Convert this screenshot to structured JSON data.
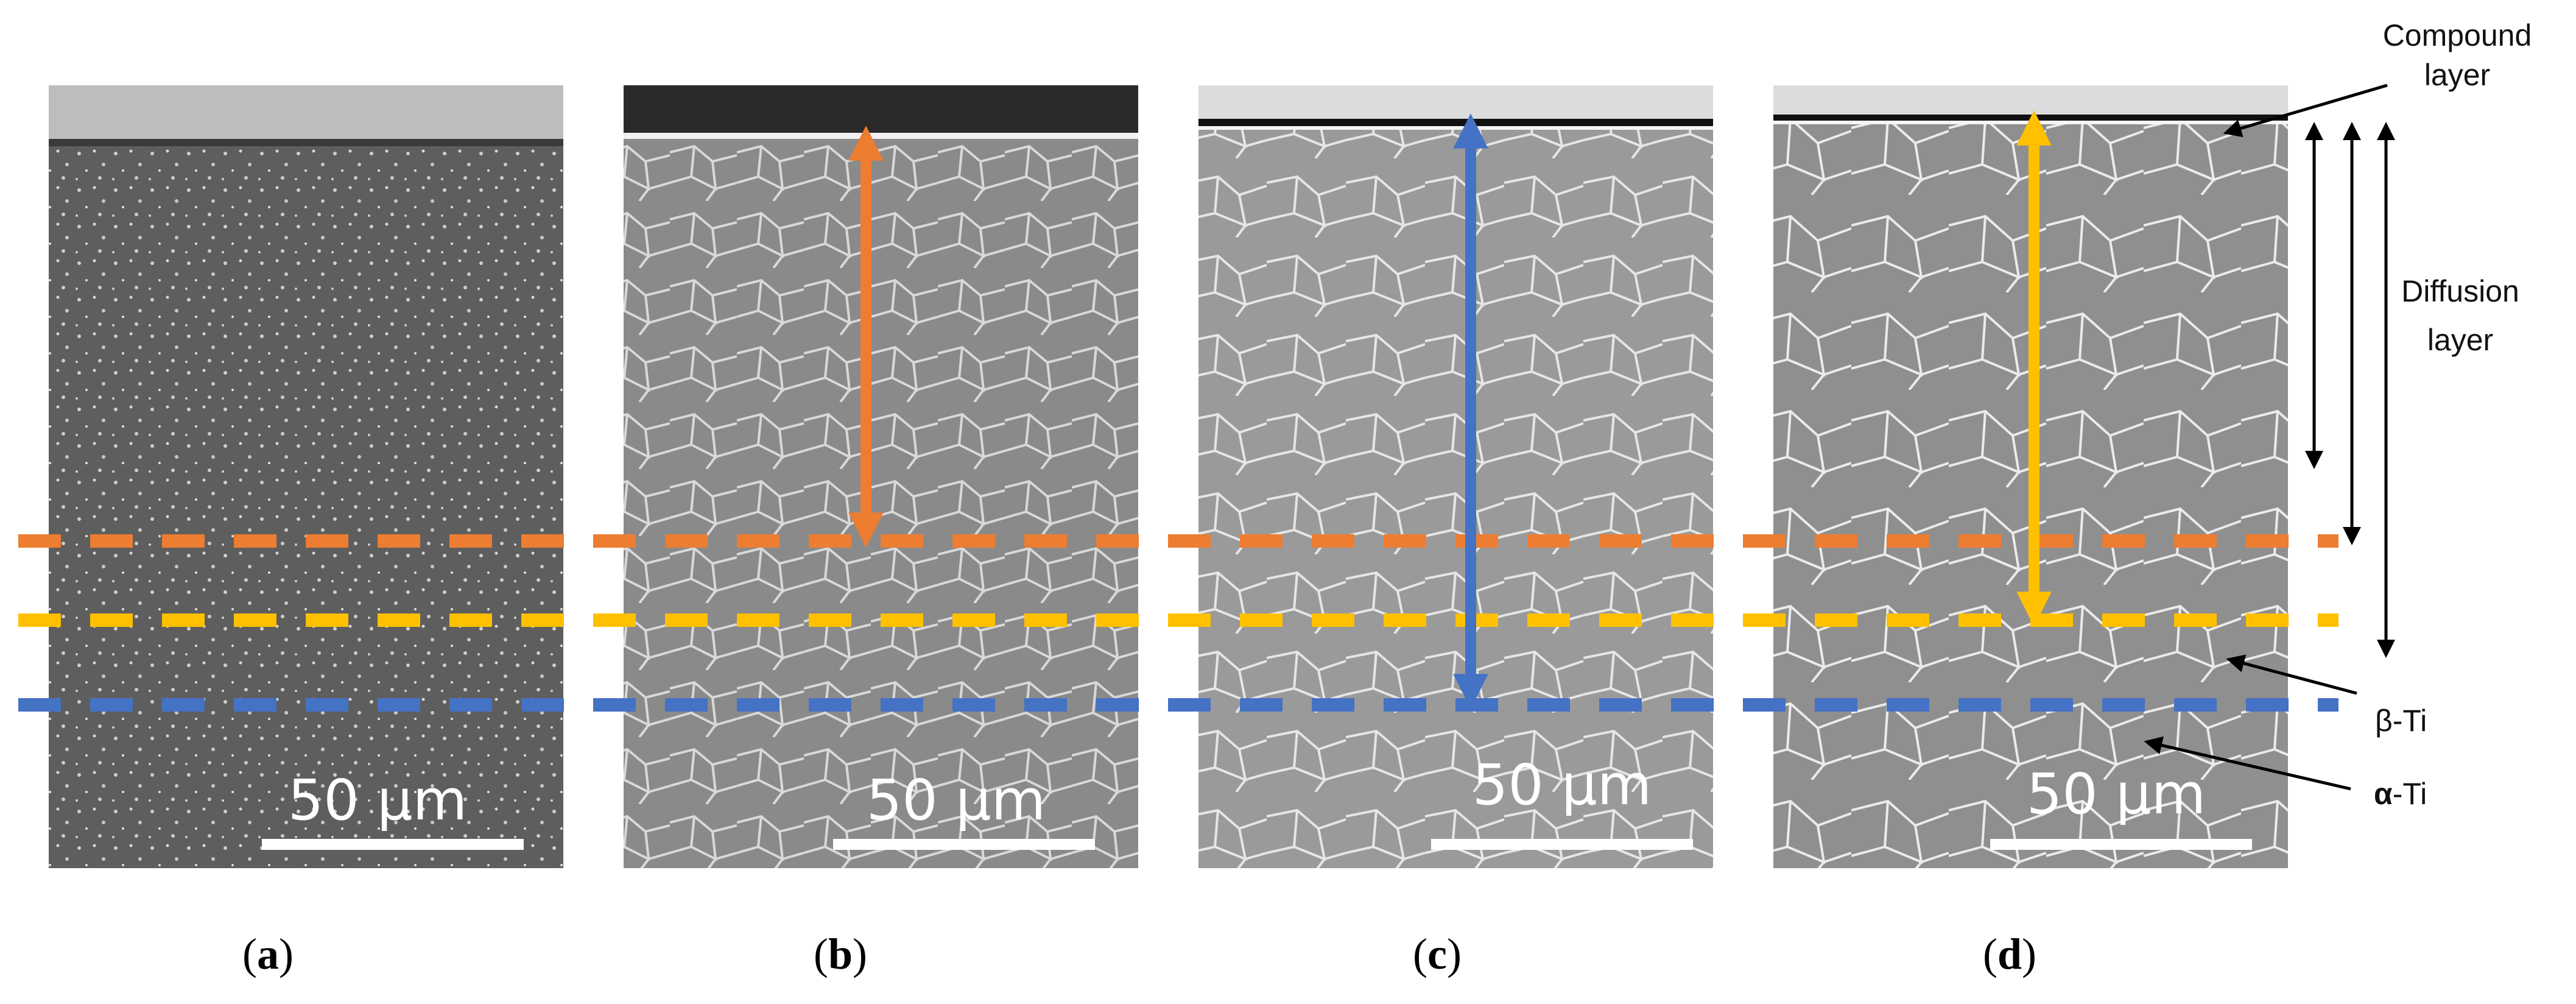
{
  "panels": [
    {
      "id": "a",
      "label": "a",
      "scale_bar": "50 μm"
    },
    {
      "id": "b",
      "label": "b",
      "scale_bar": "50 μm"
    },
    {
      "id": "c",
      "label": "c",
      "scale_bar": "50 μm"
    },
    {
      "id": "d",
      "label": "d",
      "scale_bar": "50 μm"
    }
  ],
  "annotations": {
    "compound_line1": "Compound",
    "compound_line2": "layer",
    "diffusion_line1": "Diffusion",
    "diffusion_line2": "layer",
    "beta_ti": "β-Ti",
    "alpha_symbol": "α",
    "alpha_suffix": "-Ti"
  },
  "colors": {
    "orange": "#ED7D31",
    "yellow": "#FFC000",
    "blue": "#4472C4",
    "black": "#000000"
  }
}
